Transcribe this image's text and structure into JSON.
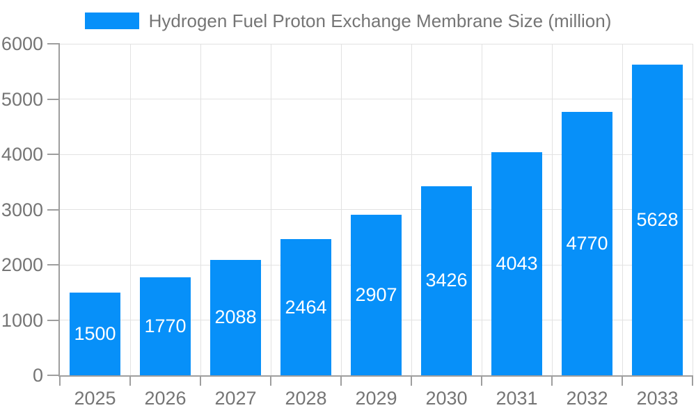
{
  "chart_data": {
    "type": "bar",
    "title": "Hydrogen Fuel Proton Exchange Membrane Size (million)",
    "legend": "Hydrogen Fuel Proton Exchange Membrane Size (million)",
    "legend_position": "top-center",
    "categories": [
      "2025",
      "2026",
      "2027",
      "2028",
      "2029",
      "2030",
      "2031",
      "2032",
      "2033"
    ],
    "values": [
      1500,
      1770,
      2088,
      2464,
      2907,
      3426,
      4043,
      4770,
      5628
    ],
    "xlabel": "",
    "ylabel": "",
    "ylim": [
      0,
      6000
    ],
    "ytick_step": 1000,
    "ytick_labels": [
      "0",
      "1000",
      "2000",
      "3000",
      "4000",
      "5000",
      "6000"
    ],
    "grid": true,
    "bar_labels_shown": true,
    "colors": {
      "bar": "#0790f9",
      "bar_label_text": "#ffffff",
      "axis_text": "#757575",
      "grid_line": "#e2e2e2",
      "axis_line": "#9e9e9e",
      "background": "#ffffff"
    }
  }
}
